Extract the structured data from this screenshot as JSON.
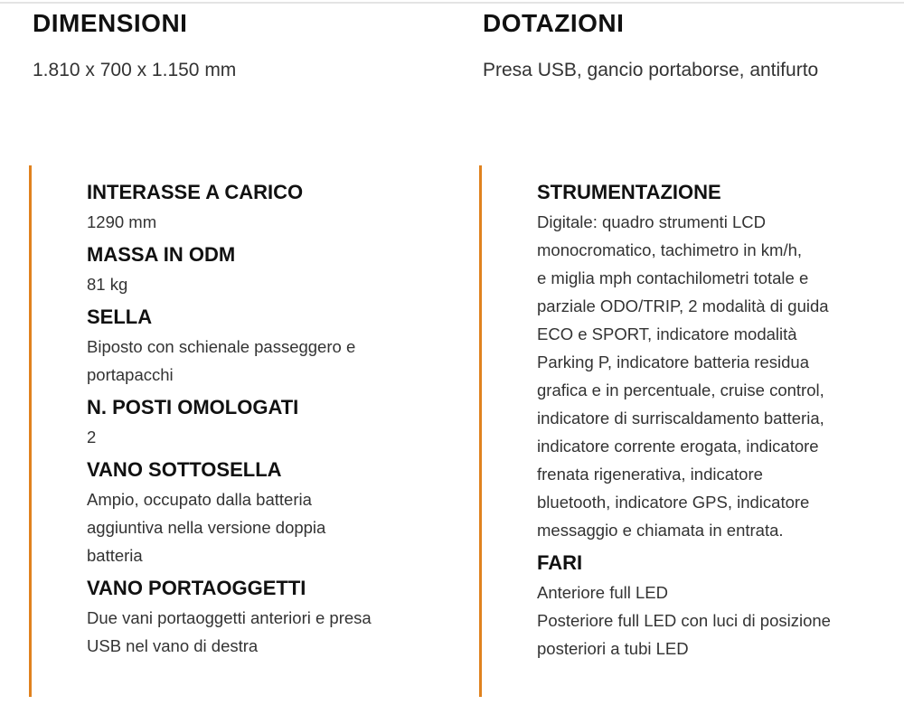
{
  "colors": {
    "accent_bar": "#e0821e",
    "heading": "#111111",
    "text": "#333333"
  },
  "top": [
    {
      "title": "DIMENSIONI",
      "value": "1.810 x 700 x 1.150 mm"
    },
    {
      "title": "DOTAZIONI",
      "value": "Presa USB, gancio portaborse, antifurto"
    }
  ],
  "left": [
    {
      "title": "INTERASSE A CARICO",
      "lines": [
        "1290 mm"
      ]
    },
    {
      "title": "MASSA IN ODM",
      "lines": [
        "81 kg"
      ]
    },
    {
      "title": "SELLA",
      "lines": [
        "Biposto con schienale passeggero e",
        "portapacchi"
      ]
    },
    {
      "title": "N. POSTI OMOLOGATI",
      "lines": [
        "2"
      ]
    },
    {
      "title": "VANO SOTTOSELLA",
      "lines": [
        "Ampio, occupato dalla batteria",
        "aggiuntiva nella versione doppia",
        "batteria"
      ]
    },
    {
      "title": "VANO PORTAOGGETTI",
      "lines": [
        "Due vani portaoggetti anteriori e presa",
        "USB nel vano di destra"
      ]
    }
  ],
  "right": [
    {
      "title": "STRUMENTAZIONE",
      "lines": [
        "Digitale: quadro strumenti LCD",
        "monocromatico, tachimetro in km/h,",
        "e miglia mph contachilometri totale e",
        "parziale ODO/TRIP, 2 modalità di guida",
        "ECO e SPORT, indicatore modalità",
        "Parking P, indicatore batteria residua",
        "grafica e in percentuale, cruise control,",
        "indicatore di surriscaldamento batteria,",
        "indicatore corrente erogata, indicatore",
        "frenata rigenerativa, indicatore",
        "bluetooth, indicatore GPS, indicatore",
        "messaggio e chiamata in entrata."
      ]
    },
    {
      "title": "FARI",
      "lines": [
        "Anteriore full LED",
        "Posteriore full LED con luci di posizione",
        "posteriori a tubi LED"
      ]
    }
  ]
}
